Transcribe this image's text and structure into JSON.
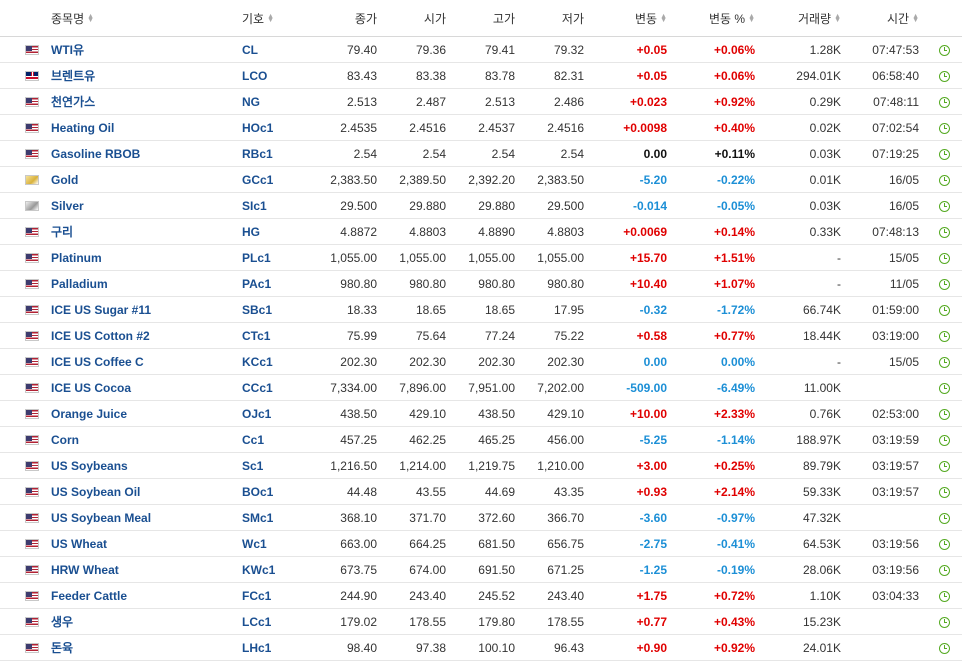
{
  "headers": {
    "name": "종목명",
    "symbol": "기호",
    "close": "종가",
    "open": "시가",
    "high": "고가",
    "low": "저가",
    "change": "변동",
    "change_pct": "변동 %",
    "volume": "거래량",
    "time": "시간"
  },
  "rows": [
    {
      "flag": "us",
      "name": "WTI유",
      "symbol": "CL",
      "close": "79.40",
      "open": "79.36",
      "high": "79.41",
      "low": "79.32",
      "change": "+0.05",
      "change_pct": "+0.06%",
      "dir": "pos",
      "volume": "1.28K",
      "time": "07:47:53"
    },
    {
      "flag": "uk",
      "name": "브렌트유",
      "symbol": "LCO",
      "close": "83.43",
      "open": "83.38",
      "high": "83.78",
      "low": "82.31",
      "change": "+0.05",
      "change_pct": "+0.06%",
      "dir": "pos",
      "volume": "294.01K",
      "time": "06:58:40"
    },
    {
      "flag": "us",
      "name": "천연가스",
      "symbol": "NG",
      "close": "2.513",
      "open": "2.487",
      "high": "2.513",
      "low": "2.486",
      "change": "+0.023",
      "change_pct": "+0.92%",
      "dir": "pos",
      "volume": "0.29K",
      "time": "07:48:11"
    },
    {
      "flag": "us",
      "name": "Heating Oil",
      "symbol": "HOc1",
      "close": "2.4535",
      "open": "2.4516",
      "high": "2.4537",
      "low": "2.4516",
      "change": "+0.0098",
      "change_pct": "+0.40%",
      "dir": "pos",
      "volume": "0.02K",
      "time": "07:02:54"
    },
    {
      "flag": "us",
      "name": "Gasoline RBOB",
      "symbol": "RBc1",
      "close": "2.54",
      "open": "2.54",
      "high": "2.54",
      "low": "2.54",
      "change": "0.00",
      "change_pct": "+0.11%",
      "dir": "zero",
      "volume": "0.03K",
      "time": "07:19:25"
    },
    {
      "flag": "gold",
      "name": "Gold",
      "symbol": "GCc1",
      "close": "2,383.50",
      "open": "2,389.50",
      "high": "2,392.20",
      "low": "2,383.50",
      "change": "-5.20",
      "change_pct": "-0.22%",
      "dir": "neg",
      "volume": "0.01K",
      "time": "16/05"
    },
    {
      "flag": "silver",
      "name": "Silver",
      "symbol": "SIc1",
      "close": "29.500",
      "open": "29.880",
      "high": "29.880",
      "low": "29.500",
      "change": "-0.014",
      "change_pct": "-0.05%",
      "dir": "neg",
      "volume": "0.03K",
      "time": "16/05"
    },
    {
      "flag": "us",
      "name": "구리",
      "symbol": "HG",
      "close": "4.8872",
      "open": "4.8803",
      "high": "4.8890",
      "low": "4.8803",
      "change": "+0.0069",
      "change_pct": "+0.14%",
      "dir": "pos",
      "volume": "0.33K",
      "time": "07:48:13"
    },
    {
      "flag": "us",
      "name": "Platinum",
      "symbol": "PLc1",
      "close": "1,055.00",
      "open": "1,055.00",
      "high": "1,055.00",
      "low": "1,055.00",
      "change": "+15.70",
      "change_pct": "+1.51%",
      "dir": "pos",
      "volume": "-",
      "time": "15/05"
    },
    {
      "flag": "us",
      "name": "Palladium",
      "symbol": "PAc1",
      "close": "980.80",
      "open": "980.80",
      "high": "980.80",
      "low": "980.80",
      "change": "+10.40",
      "change_pct": "+1.07%",
      "dir": "pos",
      "volume": "-",
      "time": "11/05"
    },
    {
      "flag": "us",
      "name": "ICE US Sugar #11",
      "symbol": "SBc1",
      "close": "18.33",
      "open": "18.65",
      "high": "18.65",
      "low": "17.95",
      "change": "-0.32",
      "change_pct": "-1.72%",
      "dir": "neg",
      "volume": "66.74K",
      "time": "01:59:00"
    },
    {
      "flag": "us",
      "name": "ICE US Cotton #2",
      "symbol": "CTc1",
      "close": "75.99",
      "open": "75.64",
      "high": "77.24",
      "low": "75.22",
      "change": "+0.58",
      "change_pct": "+0.77%",
      "dir": "pos",
      "volume": "18.44K",
      "time": "03:19:00"
    },
    {
      "flag": "us",
      "name": "ICE US Coffee C",
      "symbol": "KCc1",
      "close": "202.30",
      "open": "202.30",
      "high": "202.30",
      "low": "202.30",
      "change": "0.00",
      "change_pct": "0.00%",
      "dir": "neg",
      "volume": "-",
      "time": "15/05"
    },
    {
      "flag": "us",
      "name": "ICE US Cocoa",
      "symbol": "CCc1",
      "close": "7,334.00",
      "open": "7,896.00",
      "high": "7,951.00",
      "low": "7,202.00",
      "change": "-509.00",
      "change_pct": "-6.49%",
      "dir": "neg",
      "volume": "11.00K",
      "time": ""
    },
    {
      "flag": "us",
      "name": "Orange Juice",
      "symbol": "OJc1",
      "close": "438.50",
      "open": "429.10",
      "high": "438.50",
      "low": "429.10",
      "change": "+10.00",
      "change_pct": "+2.33%",
      "dir": "pos",
      "volume": "0.76K",
      "time": "02:53:00"
    },
    {
      "flag": "us",
      "name": "Corn",
      "symbol": "Cc1",
      "close": "457.25",
      "open": "462.25",
      "high": "465.25",
      "low": "456.00",
      "change": "-5.25",
      "change_pct": "-1.14%",
      "dir": "neg",
      "volume": "188.97K",
      "time": "03:19:59"
    },
    {
      "flag": "us",
      "name": "US Soybeans",
      "symbol": "Sc1",
      "close": "1,216.50",
      "open": "1,214.00",
      "high": "1,219.75",
      "low": "1,210.00",
      "change": "+3.00",
      "change_pct": "+0.25%",
      "dir": "pos",
      "volume": "89.79K",
      "time": "03:19:57"
    },
    {
      "flag": "us",
      "name": "US Soybean Oil",
      "symbol": "BOc1",
      "close": "44.48",
      "open": "43.55",
      "high": "44.69",
      "low": "43.35",
      "change": "+0.93",
      "change_pct": "+2.14%",
      "dir": "pos",
      "volume": "59.33K",
      "time": "03:19:57"
    },
    {
      "flag": "us",
      "name": "US Soybean Meal",
      "symbol": "SMc1",
      "close": "368.10",
      "open": "371.70",
      "high": "372.60",
      "low": "366.70",
      "change": "-3.60",
      "change_pct": "-0.97%",
      "dir": "neg",
      "volume": "47.32K",
      "time": ""
    },
    {
      "flag": "us",
      "name": "US Wheat",
      "symbol": "Wc1",
      "close": "663.00",
      "open": "664.25",
      "high": "681.50",
      "low": "656.75",
      "change": "-2.75",
      "change_pct": "-0.41%",
      "dir": "neg",
      "volume": "64.53K",
      "time": "03:19:56"
    },
    {
      "flag": "us",
      "name": "HRW Wheat",
      "symbol": "KWc1",
      "close": "673.75",
      "open": "674.00",
      "high": "691.50",
      "low": "671.25",
      "change": "-1.25",
      "change_pct": "-0.19%",
      "dir": "neg",
      "volume": "28.06K",
      "time": "03:19:56"
    },
    {
      "flag": "us",
      "name": "Feeder Cattle",
      "symbol": "FCc1",
      "close": "244.90",
      "open": "243.40",
      "high": "245.52",
      "low": "243.40",
      "change": "+1.75",
      "change_pct": "+0.72%",
      "dir": "pos",
      "volume": "1.10K",
      "time": "03:04:33"
    },
    {
      "flag": "us",
      "name": "생우",
      "symbol": "LCc1",
      "close": "179.02",
      "open": "178.55",
      "high": "179.80",
      "low": "178.55",
      "change": "+0.77",
      "change_pct": "+0.43%",
      "dir": "pos",
      "volume": "15.23K",
      "time": ""
    },
    {
      "flag": "us",
      "name": "돈육",
      "symbol": "LHc1",
      "close": "98.40",
      "open": "97.38",
      "high": "100.10",
      "low": "96.43",
      "change": "+0.90",
      "change_pct": "+0.92%",
      "dir": "pos",
      "volume": "24.01K",
      "time": ""
    }
  ],
  "colors": {
    "up": "#e00000",
    "down": "#1c8fd6",
    "link": "#1a4f91",
    "clock": "#55aa22"
  },
  "icons": {
    "sort": "sort-arrows-icon",
    "status": "clock-icon"
  }
}
